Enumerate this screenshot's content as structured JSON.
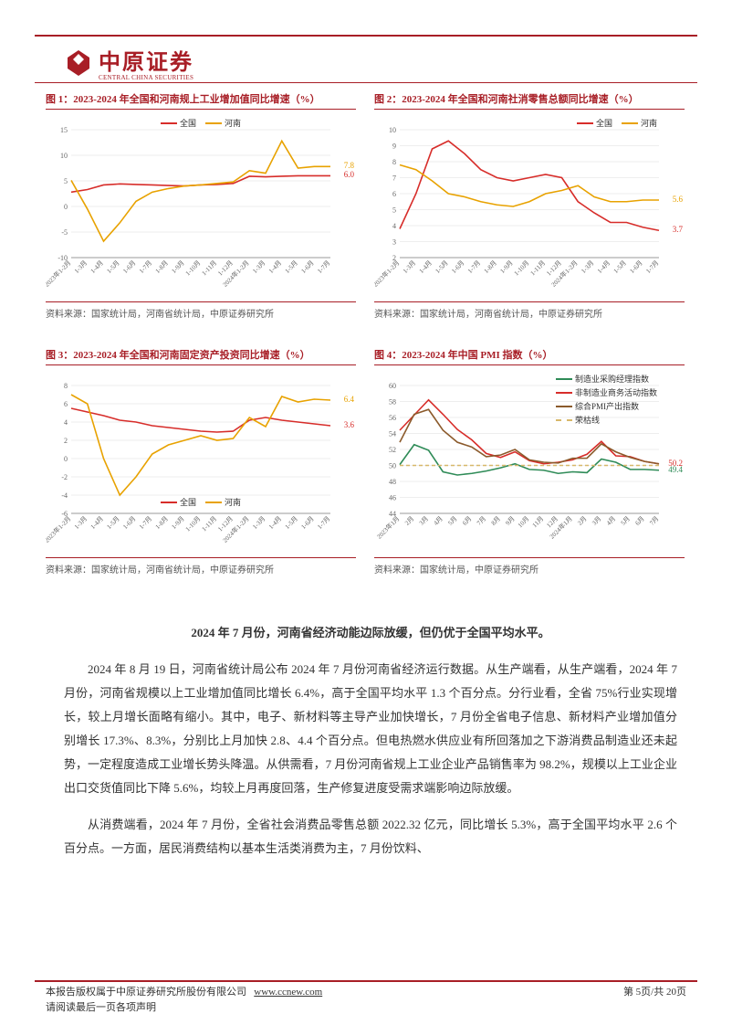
{
  "logo": {
    "cn": "中原证券",
    "en": "CENTRAL CHINA SECURITIES"
  },
  "colors": {
    "brand": "#a81e26",
    "national": "#d72d2a",
    "henan": "#e8a200",
    "pmi_mfg": "#2e8b57",
    "pmi_nonmfg": "#d72d2a",
    "pmi_composite": "#8b5a2b",
    "pmi_threshold": "#d8b86a",
    "grid": "#dddddd",
    "axis": "#999999",
    "text": "#333333"
  },
  "xticks_main": [
    "2023年1-2月",
    "1-3月",
    "1-4月",
    "1-5月",
    "1-6月",
    "1-7月",
    "1-8月",
    "1-9月",
    "1-10月",
    "1-11月",
    "1-12月",
    "2024年1-2月",
    "1-3月",
    "1-4月",
    "1-5月",
    "1-6月",
    "1-7月"
  ],
  "xticks_pmi": [
    "2023年1月",
    "2月",
    "3月",
    "4月",
    "5月",
    "6月",
    "7月",
    "8月",
    "9月",
    "10月",
    "11月",
    "12月",
    "2024年1月",
    "2月",
    "3月",
    "4月",
    "5月",
    "6月",
    "7月"
  ],
  "charts": [
    {
      "id": "chart1",
      "title": "图 1：2023-2024 年全国和河南规上工业增加值同比增速（%）",
      "source": "资料来源：国家统计局，河南省统计局，中原证券研究所",
      "ylim": [
        -10,
        15
      ],
      "yticks": [
        -10,
        -5,
        0,
        5,
        10,
        15
      ],
      "legend_pos": "top-center",
      "series": [
        {
          "name": "全国",
          "color": "#d72d2a",
          "values": [
            2.8,
            3.3,
            4.2,
            4.4,
            4.3,
            4.2,
            4.1,
            4.0,
            4.2,
            4.3,
            4.5,
            5.9,
            5.8,
            5.9,
            6.0,
            6.0,
            6.0
          ],
          "end_label": "6.0"
        },
        {
          "name": "河南",
          "color": "#e8a200",
          "values": [
            5.1,
            -0.5,
            -6.8,
            -3.2,
            1.0,
            2.8,
            3.5,
            4.0,
            4.2,
            4.5,
            4.8,
            7.0,
            6.5,
            12.8,
            7.5,
            7.8,
            7.8
          ],
          "end_label": "7.8"
        }
      ],
      "axis_fontsize": 8,
      "label_fontsize": 8
    },
    {
      "id": "chart2",
      "title": "图 2：2023-2024 年全国和河南社消零售总额同比增速（%）",
      "source": "资料来源：国家统计局，河南省统计局，中原证券研究所",
      "ylim": [
        2,
        10
      ],
      "yticks": [
        2,
        3,
        4,
        5,
        6,
        7,
        8,
        9,
        10
      ],
      "legend_pos": "top-right",
      "series": [
        {
          "name": "全国",
          "color": "#d72d2a",
          "values": [
            3.8,
            6.0,
            8.8,
            9.3,
            8.5,
            7.5,
            7.0,
            6.8,
            7.0,
            7.2,
            7.0,
            5.5,
            4.8,
            4.2,
            4.2,
            3.9,
            3.7
          ],
          "end_label": "3.7"
        },
        {
          "name": "河南",
          "color": "#e8a200",
          "values": [
            7.8,
            7.5,
            6.8,
            6.0,
            5.8,
            5.5,
            5.3,
            5.2,
            5.5,
            6.0,
            6.2,
            6.5,
            5.8,
            5.5,
            5.5,
            5.6,
            5.6
          ],
          "end_label": "5.6"
        }
      ],
      "axis_fontsize": 8,
      "label_fontsize": 8
    },
    {
      "id": "chart3",
      "title": "图 3：2023-2024 年全国和河南固定资产投资同比增速（%）",
      "source": "资料来源：国家统计局，河南省统计局，中原证券研究所",
      "ylim": [
        -6,
        8
      ],
      "yticks": [
        -6,
        -4,
        -2,
        0,
        2,
        4,
        6,
        8
      ],
      "legend_pos": "bottom-center",
      "series": [
        {
          "name": "全国",
          "color": "#d72d2a",
          "values": [
            5.5,
            5.1,
            4.7,
            4.2,
            4.0,
            3.6,
            3.4,
            3.2,
            3.0,
            2.9,
            3.0,
            4.2,
            4.5,
            4.2,
            4.0,
            3.8,
            3.6
          ],
          "end_label": "3.6"
        },
        {
          "name": "河南",
          "color": "#e8a200",
          "values": [
            7.0,
            6.0,
            0.0,
            -4.0,
            -2.0,
            0.5,
            1.5,
            2.0,
            2.5,
            2.0,
            2.2,
            4.5,
            3.5,
            6.8,
            6.2,
            6.5,
            6.4
          ],
          "end_label": "6.4"
        }
      ],
      "axis_fontsize": 8,
      "label_fontsize": 8
    },
    {
      "id": "chart4",
      "title": "图 4：2023-2024 年中国 PMI 指数（%）",
      "source": "资料来源：国家统计局，中原证券研究所",
      "xticks": "pmi",
      "ylim": [
        44,
        60
      ],
      "yticks": [
        44,
        46,
        48,
        50,
        52,
        54,
        56,
        58,
        60
      ],
      "legend_pos": "top-right-col",
      "series": [
        {
          "name": "制造业采购经理指数",
          "color": "#2e8b57",
          "values": [
            50.1,
            52.6,
            51.9,
            49.2,
            48.8,
            49.0,
            49.3,
            49.7,
            50.2,
            49.5,
            49.4,
            49.0,
            49.2,
            49.1,
            50.8,
            50.4,
            49.5,
            49.5,
            49.4
          ],
          "end_label": "49.4"
        },
        {
          "name": "非制造业商务活动指数",
          "color": "#d72d2a",
          "values": [
            54.4,
            56.3,
            58.2,
            56.4,
            54.5,
            53.2,
            51.5,
            51.0,
            51.7,
            50.6,
            50.2,
            50.4,
            50.7,
            51.4,
            53.0,
            51.2,
            51.1,
            50.5,
            50.2
          ],
          "end_label": "50.2"
        },
        {
          "name": "综合PMI产出指数",
          "color": "#8b5a2b",
          "values": [
            52.9,
            56.4,
            57.0,
            54.4,
            52.9,
            52.3,
            51.1,
            51.3,
            52.0,
            50.7,
            50.4,
            50.3,
            50.9,
            50.9,
            52.7,
            51.7,
            51.0,
            50.5,
            50.2
          ],
          "end_label": ""
        },
        {
          "name": "荣枯线",
          "color": "#d8b86a",
          "dash": true,
          "values": [
            50,
            50,
            50,
            50,
            50,
            50,
            50,
            50,
            50,
            50,
            50,
            50,
            50,
            50,
            50,
            50,
            50,
            50,
            50
          ],
          "end_label": ""
        }
      ],
      "axis_fontsize": 8,
      "label_fontsize": 8
    }
  ],
  "body": {
    "bold_lead": "2024 年 7 月份，河南省经济动能边际放缓，但仍优于全国平均水平。",
    "p1": "2024 年 8 月 19 日，河南省统计局公布 2024 年 7 月份河南省经济运行数据。从生产端看，从生产端看，2024 年 7 月份，河南省规模以上工业增加值同比增长 6.4%，高于全国平均水平 1.3 个百分点。分行业看，全省 75%行业实现增长，较上月增长面略有缩小。其中，电子、新材料等主导产业加快增长，7 月份全省电子信息、新材料产业增加值分别增长 17.3%、8.3%，分别比上月加快 2.8、4.4 个百分点。但电热燃水供应业有所回落加之下游消费品制造业还未起势，一定程度造成工业增长势头降温。从供需看，7 月份河南省规上工业企业产品销售率为 98.2%，规模以上工业企业出口交货值同比下降 5.6%，均较上月再度回落，生产修复进度受需求端影响边际放缓。",
    "p2": "从消费端看，2024 年 7 月份，全省社会消费品零售总额 2022.32 亿元，同比增长 5.3%，高于全国平均水平 2.6 个百分点。一方面，居民消费结构以基本生活类消费为主，7 月份饮料、"
  },
  "footer": {
    "left1": "本报告版权属于中原证券研究所股份有限公司",
    "url": "www.ccnew.com",
    "left2": "请阅读最后一页各项声明",
    "page": "第 5页/共 20页"
  }
}
